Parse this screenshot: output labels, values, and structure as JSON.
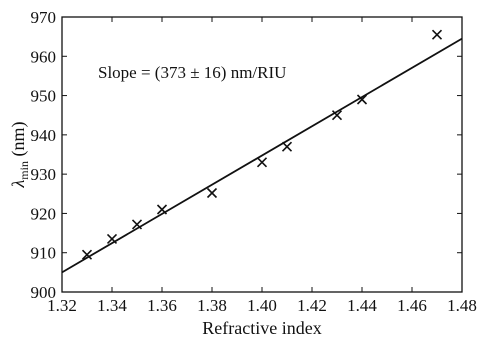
{
  "chart_data": {
    "type": "scatter",
    "title": "",
    "xlabel": "Refractive index",
    "ylabel_symbol": "λ",
    "ylabel_subscript": "min",
    "ylabel_unit": " (nm)",
    "annotation": "Slope = (373 ± 16) nm/RIU",
    "xlim": [
      1.32,
      1.48
    ],
    "ylim": [
      900,
      970
    ],
    "xticks": [
      1.32,
      1.34,
      1.36,
      1.38,
      1.4,
      1.42,
      1.44,
      1.46,
      1.48
    ],
    "xtick_labels": [
      "1.32",
      "1.34",
      "1.36",
      "1.38",
      "1.40",
      "1.42",
      "1.44",
      "1.46",
      "1.48"
    ],
    "yticks": [
      900,
      910,
      920,
      930,
      940,
      950,
      960,
      970
    ],
    "ytick_labels": [
      "900",
      "910",
      "920",
      "930",
      "940",
      "950",
      "960",
      "970"
    ],
    "grid": false,
    "marker": "x",
    "series": [
      {
        "x": [
          1.33,
          1.34,
          1.35,
          1.36,
          1.38,
          1.4,
          1.41,
          1.43,
          1.44,
          1.47
        ],
        "y": [
          909.5,
          913.5,
          917.2,
          921.0,
          925.2,
          933.0,
          937.0,
          945.0,
          949.0,
          965.5
        ]
      }
    ],
    "fit_line": {
      "x": [
        1.32,
        1.48
      ],
      "y": [
        905.0,
        964.5
      ]
    },
    "color": "#111111"
  }
}
